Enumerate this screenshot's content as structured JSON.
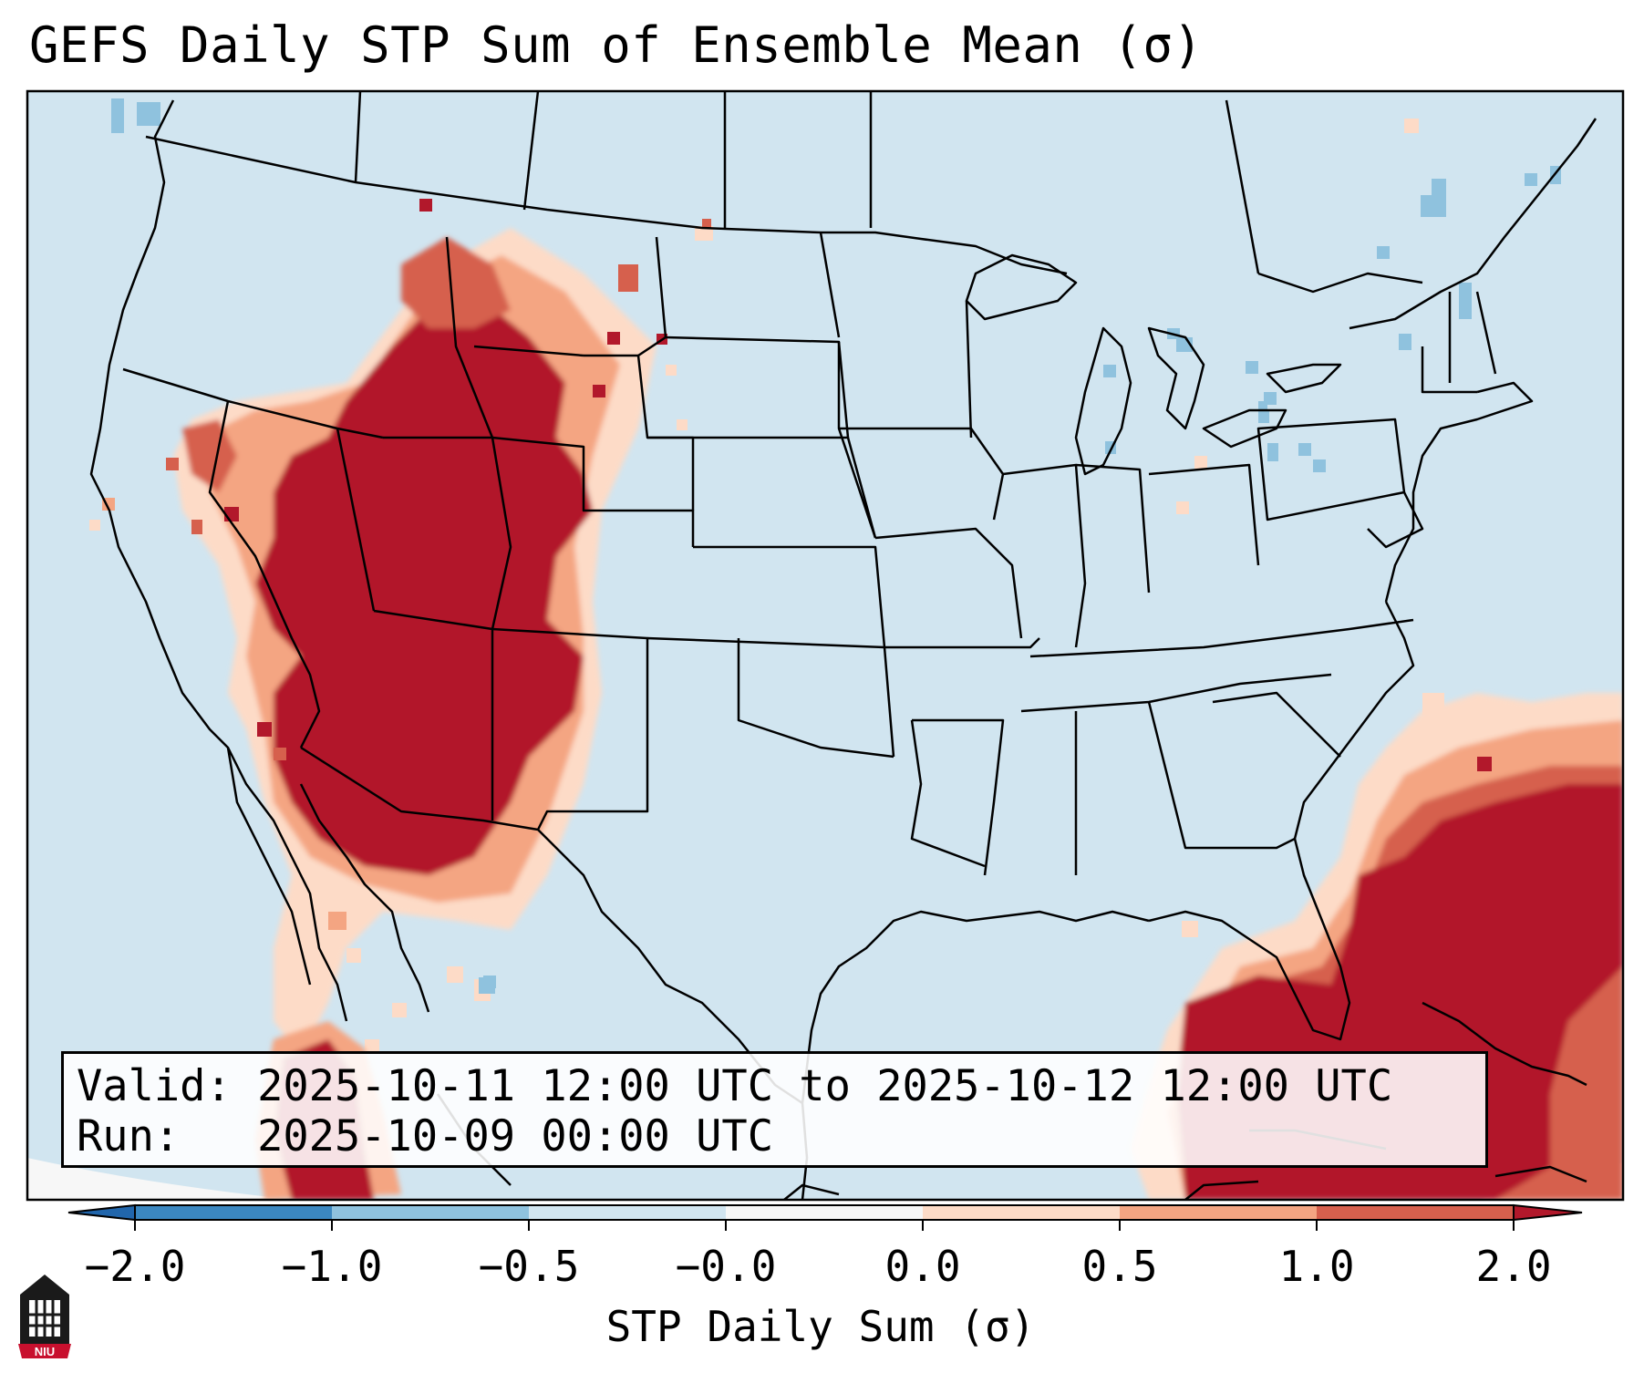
{
  "title": "GEFS Daily STP Sum of Ensemble Mean (σ)",
  "info": {
    "valid_line": "Valid: 2025-10-11 12:00 UTC to 2025-10-12 12:00 UTC",
    "run_line": "Run:   2025-10-09 00:00 UTC"
  },
  "colorbar": {
    "label": "STP Daily Sum (σ)",
    "ticks": [
      "−2.0",
      "−1.0",
      "−0.5",
      "−0.0",
      "0.0",
      "0.5",
      "1.0",
      "2.0"
    ],
    "colors": [
      "#3b87c0",
      "#8fc2de",
      "#d1e5f0",
      "#f7f7f7",
      "#fddbc7",
      "#f4a582",
      "#d6604d",
      "#b2182b"
    ],
    "extend_low_color": "#2166ac",
    "extend_high_color": "#b2182b"
  },
  "map_colors": {
    "background": "#d1e5f0",
    "outside_domain": "#f7f7f7",
    "high": "#b2182b",
    "mid": "#d6604d",
    "low": "#f4a582",
    "faint": "#fddbc7",
    "negative": "#8fc2de",
    "borders": "#000000"
  },
  "logo": {
    "icon": "niu-logo-icon",
    "text": "NIU"
  }
}
